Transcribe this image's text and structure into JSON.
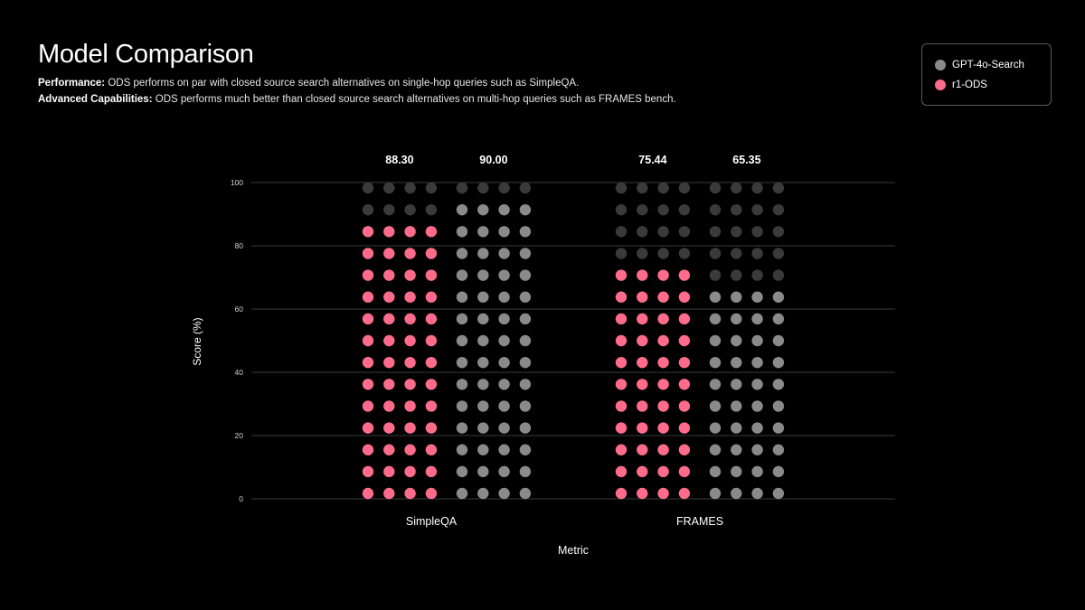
{
  "header": {
    "title": "Model Comparison",
    "line1_label": "Performance:",
    "line1_text": "ODS performs on par with closed source search alternatives on single-hop queries such as SimpleQA.",
    "line2_label": "Advanced Capabilities:",
    "line2_text": "ODS performs much better than closed source search alternatives on multi-hop queries such as FRAMES bench."
  },
  "legend": {
    "items": [
      {
        "label": "GPT-4o-Search",
        "color": "#8a8a8a"
      },
      {
        "label": "r1-ODS",
        "color": "#ff6b8a"
      }
    ]
  },
  "chart_data": {
    "type": "dot-matrix",
    "title": "",
    "xlabel": "Metric",
    "ylabel": "Score (%)",
    "ylim": [
      0,
      100
    ],
    "yticks": [
      0,
      20,
      40,
      60,
      80,
      100
    ],
    "categories": [
      "SimpleQA",
      "FRAMES"
    ],
    "series": [
      {
        "name": "r1-ODS",
        "values": [
          88.3,
          75.44
        ],
        "color": "#ff6b8a"
      },
      {
        "name": "GPT-4o-Search",
        "values": [
          90.0,
          65.35
        ],
        "color": "#8a8a8a"
      }
    ],
    "value_labels": [
      "88.30",
      "90.00",
      "75.44",
      "65.35"
    ],
    "dots_per_row": 4,
    "dots_per_column": 15,
    "empty_dot_color": "#3a3a3a",
    "grid": true
  }
}
